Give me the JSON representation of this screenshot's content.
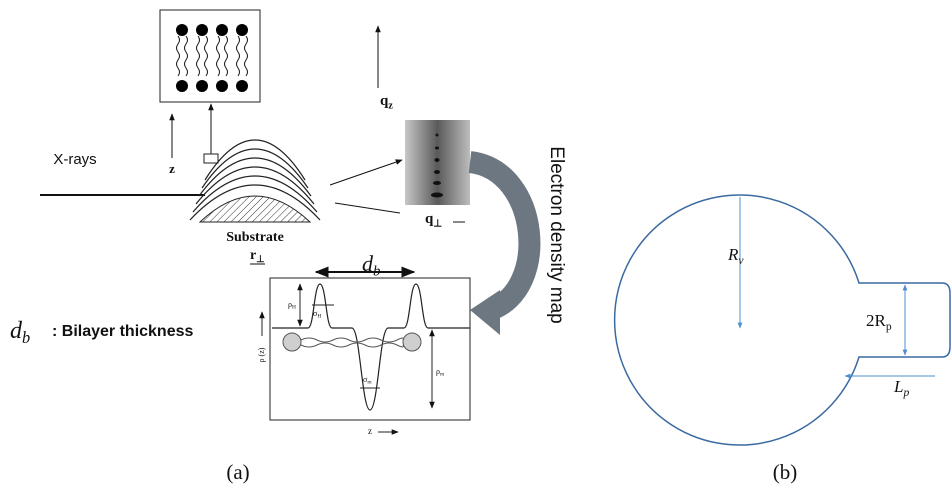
{
  "panel_a": {
    "xray_label": "X-rays",
    "z_label": "z",
    "qz": {
      "main": "q",
      "sub": "z"
    },
    "qperp": {
      "main": "q",
      "sub": "⊥"
    },
    "substrate": "Substrate",
    "rperp": {
      "main": "r",
      "sub": "⊥"
    },
    "db": {
      "main": "d",
      "sub": "b"
    },
    "arrow_label": "Electron density map",
    "legend": {
      "symbol": {
        "main": "d",
        "sub": "b"
      },
      "text": ": Bilayer thickness"
    },
    "plot": {
      "rho_h": {
        "main": "ρ",
        "sub": "H"
      },
      "sigma_h": {
        "main": "σ",
        "sub": "H"
      },
      "rho_z": "ρ (z)",
      "sigma_m": {
        "main": "σ",
        "sub": "m"
      },
      "rho_m": {
        "main": "ρ",
        "sub": "m"
      },
      "x_label": "z"
    },
    "caption": "(a)"
  },
  "panel_b": {
    "rv": {
      "main": "R",
      "sub": "v"
    },
    "two_rp": {
      "main": "2R",
      "sub": "p"
    },
    "lp": {
      "main": "L",
      "sub": "p"
    },
    "caption": "(b)"
  }
}
